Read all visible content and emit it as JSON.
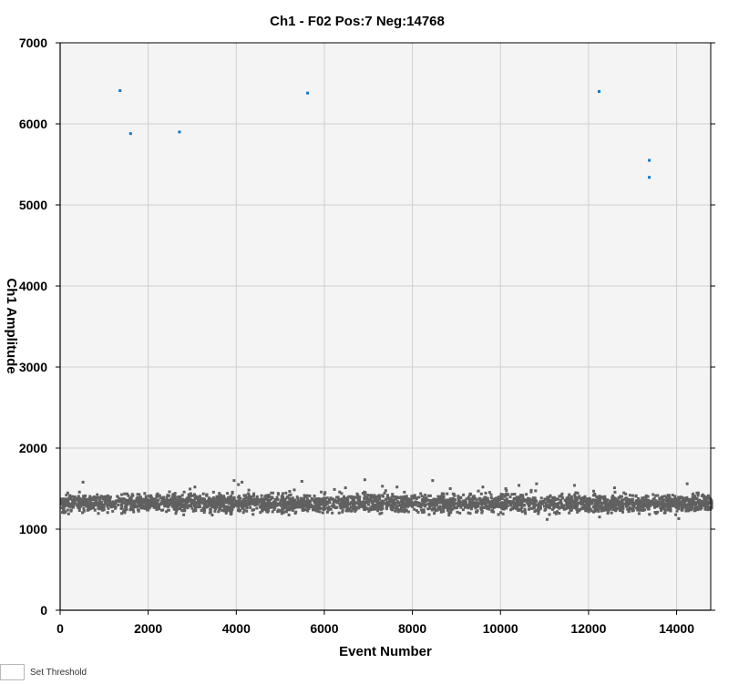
{
  "chart_data": {
    "type": "scatter",
    "title": "Ch1 - F02 Pos:7 Neg:14768",
    "xlabel": "Event Number",
    "ylabel": "Ch1 Amplitude",
    "xlim": [
      0,
      14775
    ],
    "ylim": [
      0,
      7000
    ],
    "xticks": [
      0,
      2000,
      4000,
      6000,
      8000,
      10000,
      12000,
      14000
    ],
    "yticks": [
      0,
      1000,
      2000,
      3000,
      4000,
      5000,
      6000,
      7000
    ],
    "grid": true,
    "series": [
      {
        "color": "#0a78c8",
        "points": [
          [
            1360,
            6410
          ],
          [
            1600,
            5880
          ],
          [
            2710,
            5900
          ],
          [
            5620,
            6380
          ],
          [
            12240,
            6400
          ],
          [
            13380,
            5550
          ],
          [
            13380,
            5340
          ]
        ]
      },
      {
        "color": "#606060",
        "band": {
          "x_start": 0,
          "x_end": 14775,
          "center": 1320,
          "spread": 55,
          "count": 14768
        },
        "points": [
          [
            520,
            1580
          ],
          [
            3950,
            1600
          ],
          [
            4130,
            1580
          ],
          [
            4050,
            1550
          ],
          [
            5490,
            1590
          ],
          [
            6920,
            1610
          ],
          [
            7320,
            1530
          ],
          [
            7650,
            1520
          ],
          [
            8460,
            1600
          ],
          [
            8860,
            1500
          ],
          [
            9600,
            1520
          ],
          [
            10420,
            1540
          ],
          [
            10820,
            1560
          ],
          [
            11680,
            1540
          ],
          [
            12590,
            1510
          ],
          [
            14240,
            1560
          ],
          [
            14050,
            1130
          ],
          [
            12250,
            1150
          ],
          [
            11060,
            1120
          ],
          [
            8380,
            1180
          ],
          [
            3060,
            1520
          ],
          [
            6480,
            1510
          ],
          [
            10120,
            1500
          ],
          [
            6230,
            1490
          ],
          [
            2950,
            1495
          ]
        ]
      }
    ]
  },
  "controls": {
    "threshold_label": "Set Threshold"
  }
}
